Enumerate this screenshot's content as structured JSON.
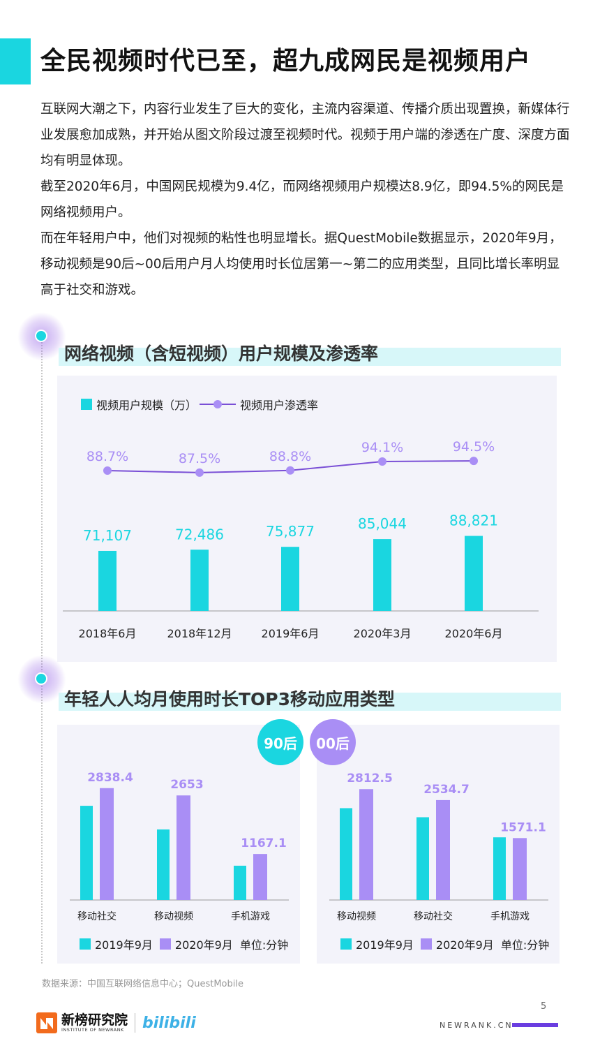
{
  "title": "全民视频时代已至，超九成网民是视频用户",
  "intro": [
    "互联网大潮之下，内容行业发生了巨大的变化，主流内容渠道、传播介质出现置换，新媒体行业发展愈加成熟，并开始从图文阶段过渡至视频时代。视频于用户端的渗透在广度、深度方面均有明显体现。",
    "截至2020年6月，中国网民规模为9.4亿，而网络视频用户规模达8.9亿，即94.5%的网民是网络视频用户。",
    "而在年轻用户中，他们对视频的粘性也明显增长。据QuestMobile数据显示，2020年9月，移动视频是90后~00后用户月人均使用时长位居第一~第二的应用类型，且同比增长率明显高于社交和游戏。"
  ],
  "colors": {
    "cyan": "#1ad6e0",
    "purple": "#a98ef5",
    "line": "#7a4fd6"
  },
  "section1": {
    "title": "网络视频（含短视频）用户规模及渗透率",
    "legend_bar": "视频用户规模（万）",
    "legend_line": "视频用户渗透率"
  },
  "section2": {
    "title": "年轻人人均月使用时长TOP3移动应用类型",
    "badge_left": "90后",
    "badge_right": "00后",
    "legend_a": "2019年9月",
    "legend_b": "2020年9月",
    "unit": "单位:分钟"
  },
  "chart_data": [
    {
      "type": "bar+line",
      "categories": [
        "2018年6月",
        "2018年12月",
        "2019年6月",
        "2020年3月",
        "2020年6月"
      ],
      "series": [
        {
          "name": "视频用户规模（万）",
          "type": "bar",
          "values": [
            71107,
            72486,
            75877,
            85044,
            88821
          ],
          "labels": [
            "71,107",
            "72,486",
            "75,877",
            "85,044",
            "88,821"
          ]
        },
        {
          "name": "视频用户渗透率",
          "type": "line",
          "values": [
            88.7,
            87.5,
            88.8,
            94.1,
            94.5
          ],
          "labels": [
            "88.7%",
            "87.5%",
            "88.8%",
            "94.1%",
            "94.5%"
          ]
        }
      ],
      "legend": "top-left"
    },
    {
      "type": "bar",
      "categories": [
        "移动社交",
        "移动视频",
        "手机游戏"
      ],
      "series": [
        {
          "name": "2019年9月",
          "values": [
            2390,
            1790,
            870
          ]
        },
        {
          "name": "2020年9月",
          "values": [
            2838.4,
            2653,
            1167.1
          ],
          "labels": [
            "2838.4",
            "2653",
            "1167.1"
          ]
        }
      ],
      "ymax": 3100
    },
    {
      "type": "bar",
      "categories": [
        "移动视频",
        "移动社交",
        "手机游戏"
      ],
      "series": [
        {
          "name": "2019年9月",
          "values": [
            2330,
            2100,
            1590
          ]
        },
        {
          "name": "2020年9月",
          "values": [
            2812.5,
            2534.7,
            1571.1
          ],
          "labels": [
            "2812.5",
            "2534.7",
            "1571.1"
          ]
        }
      ],
      "ymax": 3100
    }
  ],
  "footer": {
    "source": "数据来源：中国互联网络信息中心；QuestMobile",
    "page_number": "5",
    "url": "NEWRANK.CN",
    "logo_cn": "新榜研究院",
    "logo_en": "INSTITUTE OF NEWRANK",
    "partner_logo": "bilibili"
  }
}
